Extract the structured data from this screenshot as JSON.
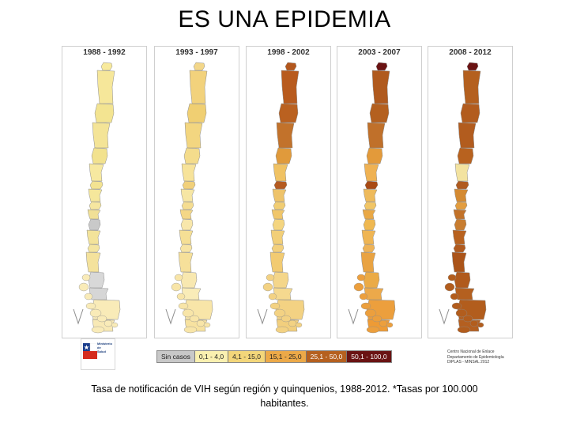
{
  "title": "ES UNA EPIDEMIA",
  "panels": [
    {
      "label": "1988 - 1992",
      "colors": [
        "#f8ea9c",
        "#f6e79a",
        "#f3e491",
        "#f4e497",
        "#f2e28e",
        "#f7e9a0",
        "#f3e392",
        "#f5e79b",
        "#f6e7a0",
        "#f1e096",
        "#c9c9c9",
        "#f3e39a",
        "#f4e5a0",
        "#f4e29c",
        "#d8d8d8",
        "#d6d6d6",
        "#f9ebb8",
        "#f8e9b5"
      ]
    },
    {
      "label": "1993 - 1997",
      "colors": [
        "#f3d78a",
        "#f2d27c",
        "#f0cf72",
        "#f3d680",
        "#f4dc8c",
        "#f7e39a",
        "#f1d07a",
        "#f6e6a4",
        "#f5dd91",
        "#f4d786",
        "#f8e7ab",
        "#f5df95",
        "#f7e4a4",
        "#f6e09a",
        "#f8e8b0",
        "#f9ecb8",
        "#f8e5a8",
        "#f7e2a0"
      ]
    },
    {
      "label": "1998 - 2002",
      "colors": [
        "#b3571d",
        "#b85b1e",
        "#ba6120",
        "#c2722b",
        "#e09a3b",
        "#f0c263",
        "#b45a20",
        "#eec36a",
        "#f1cd73",
        "#f0c66a",
        "#f4d580",
        "#f2cf78",
        "#f3d07c",
        "#f2cb72",
        "#f4d68a",
        "#f5d98f",
        "#f3d283",
        "#f2cf7d"
      ]
    },
    {
      "label": "2003 - 2007",
      "colors": [
        "#6a1313",
        "#b05a1e",
        "#b4601f",
        "#c0702a",
        "#e39a3a",
        "#efb253",
        "#a94a14",
        "#eeba5b",
        "#f1c565",
        "#e9a845",
        "#efb851",
        "#efb553",
        "#efb356",
        "#e9a342",
        "#ebab46",
        "#eca94a",
        "#ec9f3d",
        "#ee9b35"
      ]
    },
    {
      "label": "2008 - 2012",
      "colors": [
        "#6a1313",
        "#b4601f",
        "#b25c1e",
        "#b25c1e",
        "#b8621f",
        "#f3e3a0",
        "#b05a1e",
        "#d48a32",
        "#e39d3f",
        "#c27229",
        "#c87d30",
        "#b8621f",
        "#b15a1e",
        "#ab5419",
        "#b05a1c",
        "#b4601f",
        "#b25d1d",
        "#b45f20"
      ]
    }
  ],
  "legend": [
    {
      "label": "Sin casos",
      "color": "#c8c8c8"
    },
    {
      "label": "0,1 - 4,0",
      "color": "#faf0b0"
    },
    {
      "label": "4,1 - 15,0",
      "color": "#f3d67a"
    },
    {
      "label": "15,1 - 25,0",
      "color": "#eca948"
    },
    {
      "label": "25,1 - 50,0",
      "color": "#b5601f"
    },
    {
      "label": "50,1 - 100,0",
      "color": "#6a1313"
    }
  ],
  "credit": [
    "Centro Nacional de Enlace",
    "Departamento de Epidemiología",
    "DIPLAS - MINSAL 2012"
  ],
  "logo_text": [
    "Ministerio de",
    "Salud"
  ],
  "caption": "Tasa de notificación de VIH según región y quinquenios, 1988-2012. *Tasas por 100.000 habitantes."
}
